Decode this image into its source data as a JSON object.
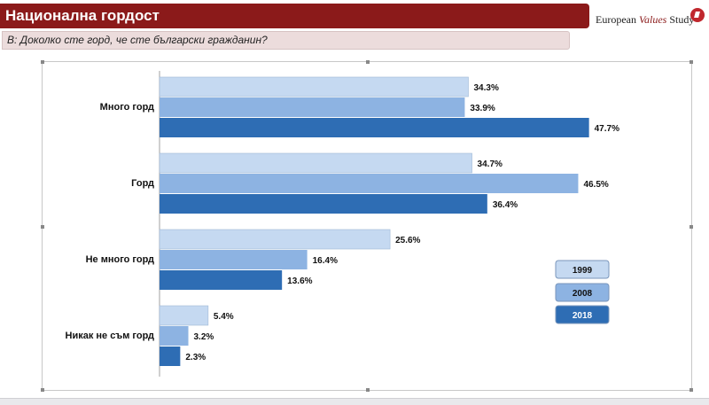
{
  "header": {
    "title": "Национална гордост",
    "logo_text_1": "European",
    "logo_text_2": "Values",
    "logo_text_3": "Study"
  },
  "question": "В: Доколко сте горд, че сте български гражданин?",
  "colors": {
    "1999": "#c5d9f1",
    "2008": "#8db3e2",
    "2018": "#2e6db4",
    "title_bg": "#8b1a1a"
  },
  "chart_data": {
    "type": "bar",
    "orientation": "horizontal",
    "categories": [
      "Много горд",
      "Горд",
      "Не много горд",
      "Никак не съм горд"
    ],
    "series": [
      {
        "name": "1999",
        "values": [
          34.3,
          34.7,
          25.6,
          5.4
        ],
        "labels": [
          "34.3%",
          "34.7%",
          "25.6%",
          "5.4%"
        ]
      },
      {
        "name": "2008",
        "values": [
          33.9,
          46.5,
          16.4,
          3.2
        ],
        "labels": [
          "33.9%",
          "46.5%",
          "16.4%",
          "3.2%"
        ]
      },
      {
        "name": "2018",
        "values": [
          47.7,
          36.4,
          13.6,
          2.3
        ],
        "labels": [
          "47.7%",
          "36.4%",
          "13.6%",
          "2.3%"
        ]
      }
    ],
    "xlim": [
      0,
      50
    ],
    "legend_position": "right",
    "grid": false
  }
}
